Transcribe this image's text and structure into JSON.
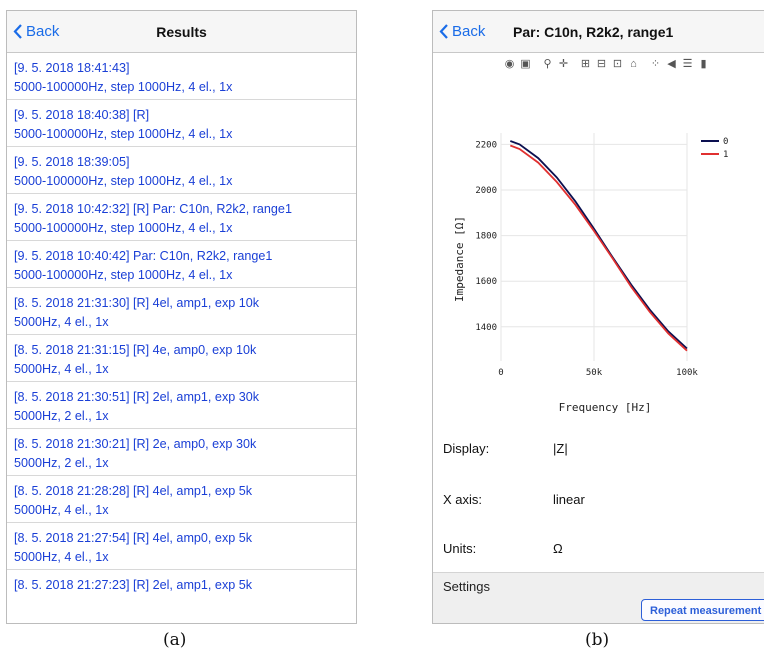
{
  "panel_a": {
    "back_label": "Back",
    "title": "Results",
    "items": [
      {
        "line1": "[9. 5. 2018 18:41:43]",
        "line2": "5000-100000Hz, step 1000Hz, 4 el., 1x"
      },
      {
        "line1": "[9. 5. 2018 18:40:38] [R]",
        "line2": "5000-100000Hz, step 1000Hz, 4 el., 1x"
      },
      {
        "line1": "[9. 5. 2018 18:39:05]",
        "line2": "5000-100000Hz, step 1000Hz, 4 el., 1x"
      },
      {
        "line1": "[9. 5. 2018 10:42:32] [R] Par: C10n, R2k2, range1",
        "line2": "5000-100000Hz, step 1000Hz, 4 el., 1x"
      },
      {
        "line1": "[9. 5. 2018 10:40:42] Par: C10n, R2k2, range1",
        "line2": "5000-100000Hz, step 1000Hz, 4 el., 1x"
      },
      {
        "line1": "[8. 5. 2018 21:31:30] [R] 4el, amp1, exp 10k",
        "line2": "5000Hz, 4 el., 1x"
      },
      {
        "line1": "[8. 5. 2018 21:31:15] [R] 4e, amp0, exp 10k",
        "line2": "5000Hz, 4 el., 1x"
      },
      {
        "line1": "[8. 5. 2018 21:30:51] [R] 2el, amp1, exp 30k",
        "line2": "5000Hz, 2 el., 1x"
      },
      {
        "line1": "[8. 5. 2018 21:30:21] [R] 2e, amp0, exp 30k",
        "line2": "5000Hz, 2 el., 1x"
      },
      {
        "line1": "[8. 5. 2018 21:28:28] [R] 4el, amp1, exp 5k",
        "line2": "5000Hz, 4 el., 1x"
      },
      {
        "line1": "[8. 5. 2018 21:27:54] [R] 4el, amp0, exp 5k",
        "line2": "5000Hz, 4 el., 1x"
      },
      {
        "line1": "[8. 5. 2018 21:27:23] [R] 2el, amp1, exp 5k",
        "line2": ""
      }
    ],
    "caption": "(a)"
  },
  "panel_b": {
    "back_label": "Back",
    "title": "Par: C10n, R2k2, range1",
    "toolbar_icons": [
      "camera-icon",
      "save-icon",
      "zoom-icon",
      "pan-icon",
      "zoom-in-icon",
      "zoom-out-icon",
      "autoscale-icon",
      "home-icon",
      "spike-lines-icon",
      "hover-closest-icon",
      "hover-compare-icon",
      "plotly-logo-icon"
    ],
    "display_label": "Display:",
    "display_value": "|Z|",
    "xaxis_label": "X axis:",
    "xaxis_value": "linear",
    "units_label": "Units:",
    "units_value": "Ω",
    "settings_label": "Settings",
    "repeat_button": "Repeat measurement",
    "caption": "(b)"
  },
  "chart_data": {
    "type": "line",
    "title": "",
    "xlabel": "Frequency [Hz]",
    "ylabel": "Impedance [Ω]",
    "xlim": [
      0,
      100000
    ],
    "ylim": [
      1250,
      2250
    ],
    "xticks": [
      0,
      50000,
      100000
    ],
    "xtick_labels": [
      "0",
      "50k",
      "100k"
    ],
    "yticks": [
      1400,
      1600,
      1800,
      2000,
      2200
    ],
    "ytick_labels": [
      "1400",
      "1600",
      "1800",
      "2000",
      "2200"
    ],
    "grid": true,
    "legend_position": "top-right",
    "series": [
      {
        "name": "0",
        "color": "#0b1050",
        "x": [
          5000,
          10000,
          20000,
          30000,
          40000,
          50000,
          60000,
          70000,
          80000,
          90000,
          100000
        ],
        "y": [
          2215,
          2200,
          2140,
          2055,
          1950,
          1830,
          1705,
          1585,
          1475,
          1380,
          1305
        ]
      },
      {
        "name": "1",
        "color": "#e03030",
        "x": [
          5000,
          10000,
          20000,
          30000,
          40000,
          50000,
          60000,
          70000,
          80000,
          90000,
          100000
        ],
        "y": [
          2195,
          2180,
          2120,
          2035,
          1935,
          1820,
          1700,
          1575,
          1465,
          1370,
          1295
        ]
      }
    ]
  }
}
